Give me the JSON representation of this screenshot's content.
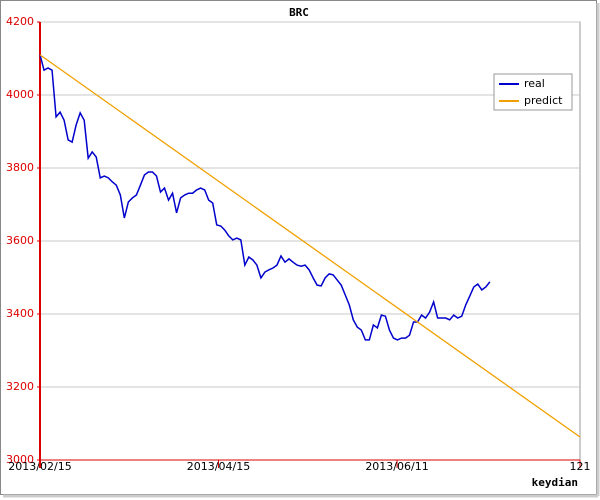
{
  "chart_data": {
    "type": "line",
    "title": "BRC",
    "xlabel": "keydian",
    "xlim": [
      0,
      121
    ],
    "ylim": [
      3000,
      4200
    ],
    "xticks": [
      {
        "value": 0,
        "label": "2013/02/15"
      },
      {
        "value": 40,
        "label": "2013/04/15"
      },
      {
        "value": 80,
        "label": "2013/06/11"
      },
      121
    ],
    "yticks": [
      3000,
      3200,
      3400,
      3600,
      3800,
      4000,
      4200
    ],
    "grid": true,
    "legend": "upper right",
    "series": [
      {
        "name": "real",
        "color": "#0000cc",
        "x": [
          0,
          0.9,
          1.8,
          2.7,
          3.6,
          4.5,
          5.4,
          6.3,
          7.2,
          8.1,
          9,
          9.9,
          10.8,
          11.7,
          12.6,
          13.5,
          14.4,
          15.3,
          16.2,
          17.1,
          18,
          18.9,
          19.8,
          20.7,
          21.6,
          22.5,
          23.4,
          24.3,
          25.2,
          26.1,
          27,
          27.9,
          28.8,
          29.7,
          30.6,
          31.5,
          32.4,
          33.3,
          34.2,
          35.1,
          36,
          36.9,
          37.8,
          38.7,
          39.6,
          40.5,
          41.4,
          42.3,
          43.2,
          44.1,
          45,
          45.9,
          46.8,
          47.7,
          48.6,
          49.5,
          50.4,
          51.3,
          52.2,
          53.1,
          54,
          54.9,
          55.8,
          56.7,
          57.6,
          58.5,
          59.4,
          60.3,
          61.2,
          62.1,
          63,
          63.9,
          64.8,
          65.7,
          66.6,
          67.5,
          68.4,
          69.3,
          70.2,
          71.1,
          72,
          72.9,
          73.8,
          74.7,
          75.6,
          76.5,
          77.4,
          78.3,
          79.2,
          80.1,
          81,
          81.9,
          82.8,
          83.7,
          84.6,
          85.5,
          86.4,
          87.3,
          88.2,
          89.1,
          90,
          90.9,
          91.8,
          92.7,
          93.6,
          94.5,
          95.4,
          96.3,
          97.2,
          98.1,
          99,
          99.9,
          100.8
        ],
        "values": [
          4110,
          4068,
          4074,
          4068,
          3940,
          3953,
          3931,
          3877,
          3871,
          3918,
          3951,
          3931,
          3827,
          3844,
          3830,
          3773,
          3778,
          3773,
          3762,
          3753,
          3726,
          3663,
          3707,
          3718,
          3726,
          3753,
          3781,
          3789,
          3789,
          3778,
          3734,
          3745,
          3712,
          3731,
          3677,
          3718,
          3726,
          3731,
          3731,
          3740,
          3745,
          3740,
          3712,
          3704,
          3644,
          3641,
          3630,
          3614,
          3603,
          3608,
          3603,
          3534,
          3556,
          3548,
          3534,
          3499,
          3515,
          3521,
          3526,
          3534,
          3559,
          3542,
          3551,
          3542,
          3534,
          3531,
          3534,
          3521,
          3499,
          3479,
          3477,
          3499,
          3510,
          3507,
          3493,
          3479,
          3452,
          3425,
          3384,
          3364,
          3356,
          3329,
          3329,
          3370,
          3362,
          3397,
          3394,
          3356,
          3334,
          3329,
          3334,
          3334,
          3342,
          3378,
          3378,
          3397,
          3389,
          3405,
          3433,
          3389,
          3389,
          3389,
          3384,
          3397,
          3389,
          3394,
          3425,
          3449,
          3474,
          3482,
          3466,
          3474,
          3488
        ]
      },
      {
        "name": "predict",
        "color": "#f0a000",
        "x": [
          0,
          121
        ],
        "values": [
          4110,
          3063
        ]
      }
    ]
  }
}
